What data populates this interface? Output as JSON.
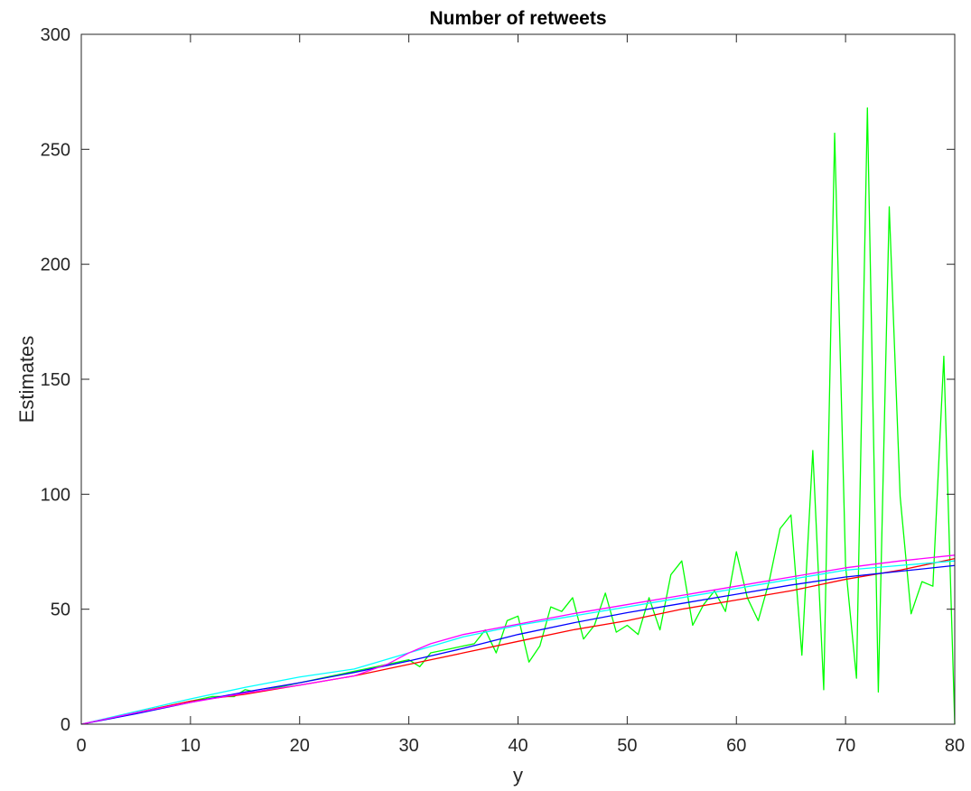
{
  "chart_data": {
    "type": "line",
    "title": "Number of retweets",
    "xlabel": "y",
    "ylabel": "Estimates",
    "xlim": [
      0,
      80
    ],
    "ylim": [
      0,
      300
    ],
    "xticks": [
      0,
      10,
      20,
      30,
      40,
      50,
      60,
      70,
      80
    ],
    "yticks": [
      0,
      50,
      100,
      150,
      200,
      250,
      300
    ],
    "grid": false,
    "box": true,
    "series": [
      {
        "color": "#00ff00",
        "x": [
          0,
          1,
          2,
          3,
          4,
          5,
          6,
          7,
          8,
          9,
          10,
          11,
          12,
          13,
          14,
          15,
          16,
          17,
          18,
          19,
          20,
          21,
          22,
          23,
          24,
          25,
          26,
          27,
          28,
          29,
          30,
          31,
          32,
          33,
          34,
          35,
          36,
          37,
          38,
          39,
          40,
          41,
          42,
          43,
          44,
          45,
          46,
          47,
          48,
          49,
          50,
          51,
          52,
          53,
          54,
          55,
          56,
          57,
          58,
          59,
          60,
          61,
          62,
          63,
          64,
          65,
          66,
          67,
          68,
          69,
          70,
          71,
          72,
          73,
          74,
          75,
          76,
          77,
          78,
          79,
          80
        ],
        "values": [
          0,
          1,
          2,
          3,
          4,
          5,
          6,
          7,
          8,
          9,
          10,
          11,
          12,
          12,
          12,
          15,
          14,
          15,
          16,
          17,
          18,
          19,
          20,
          21,
          22,
          23,
          24,
          25,
          26,
          27,
          28,
          25,
          31,
          32,
          33,
          34,
          35,
          41,
          31,
          45,
          47,
          27,
          34,
          51,
          49,
          55,
          37,
          43,
          57,
          40,
          43,
          39,
          55,
          41,
          65,
          71,
          43,
          52,
          58,
          49,
          75,
          55,
          45,
          62,
          85,
          91,
          30,
          119,
          15,
          257,
          69,
          20,
          268,
          14,
          225,
          99,
          48,
          62,
          60,
          160,
          0
        ]
      },
      {
        "color": "#ff0000",
        "x": [
          0,
          5,
          10,
          15,
          20,
          25,
          30,
          35,
          40,
          45,
          50,
          55,
          60,
          65,
          70,
          75,
          80
        ],
        "values": [
          0,
          5,
          10,
          13,
          17,
          21,
          26,
          31,
          36,
          41,
          45,
          50,
          54,
          58,
          63,
          67,
          72
        ]
      },
      {
        "color": "#0000ff",
        "x": [
          0,
          5,
          10,
          15,
          20,
          25,
          30,
          35,
          40,
          45,
          50,
          55,
          60,
          65,
          70,
          75,
          80
        ],
        "values": [
          0,
          4.5,
          9.5,
          14,
          18,
          22.5,
          27.5,
          33,
          39,
          44,
          48.5,
          52.5,
          56.5,
          60.5,
          64,
          66.5,
          69
        ]
      },
      {
        "color": "#00ffff",
        "x": [
          0,
          5,
          10,
          15,
          20,
          25,
          30,
          35,
          40,
          45,
          50,
          55,
          60,
          65,
          70,
          75,
          80
        ],
        "values": [
          0,
          5.5,
          11,
          16,
          20.5,
          24,
          31,
          38,
          43,
          47,
          51,
          55,
          59,
          63,
          67,
          69,
          71
        ]
      },
      {
        "color": "#ff00ff",
        "x": [
          0,
          5,
          10,
          15,
          20,
          25,
          28,
          30,
          32,
          35,
          40,
          45,
          50,
          55,
          60,
          65,
          70,
          75,
          80
        ],
        "values": [
          0,
          5,
          9.5,
          13.5,
          17,
          21,
          26,
          31,
          35,
          39,
          43.5,
          48,
          52,
          56,
          60,
          64,
          68,
          71,
          73.5
        ]
      }
    ]
  }
}
